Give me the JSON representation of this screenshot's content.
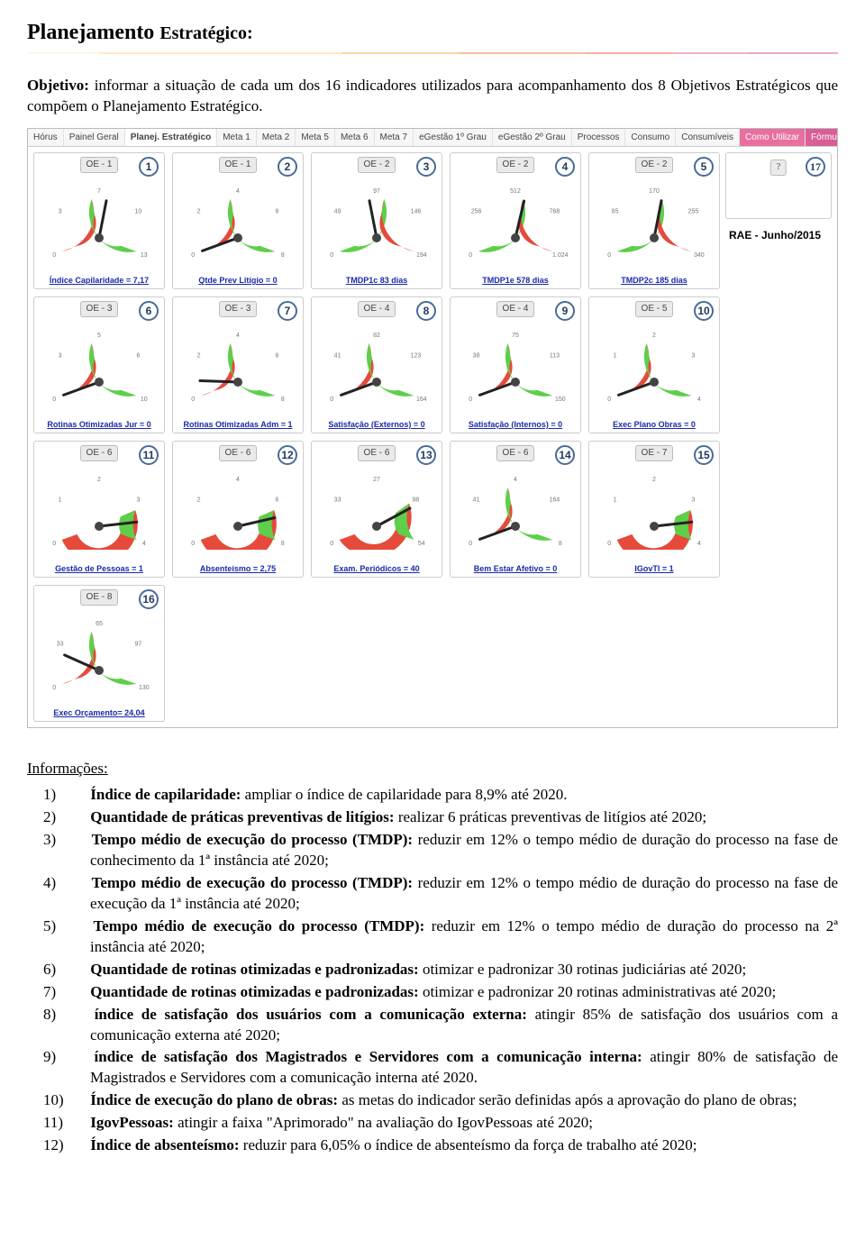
{
  "heading": {
    "main": "Planejamento ",
    "sub": "Estratégico:"
  },
  "objective": {
    "label": "Objetivo:",
    "text": " informar a situação de cada um dos 16 indicadores utilizados para acompanhamento dos 8 Objetivos Estratégicos que compõem o Planejamento Estratégico."
  },
  "dash": {
    "tabs": [
      {
        "label": "Hórus",
        "style": ""
      },
      {
        "label": "Painel Geral",
        "style": ""
      },
      {
        "label": "Planej. Estratégico",
        "style": "bold"
      },
      {
        "label": "Meta 1",
        "style": ""
      },
      {
        "label": "Meta 2",
        "style": ""
      },
      {
        "label": "Meta 5",
        "style": ""
      },
      {
        "label": "Meta 6",
        "style": ""
      },
      {
        "label": "Meta 7",
        "style": ""
      },
      {
        "label": "eGestão 1º Grau",
        "style": ""
      },
      {
        "label": "eGestão 2º Grau",
        "style": ""
      },
      {
        "label": "Processos",
        "style": ""
      },
      {
        "label": "Consumo",
        "style": ""
      },
      {
        "label": "Consumíveis",
        "style": ""
      },
      {
        "label": "Como Utilizar",
        "style": "pink1"
      },
      {
        "label": "Fórmulas",
        "style": "pink2"
      }
    ],
    "rae": "RAE - Junho/2015",
    "extra_badge": "17",
    "extra_oe": "?",
    "gauges": [
      {
        "n": "1",
        "oe": "OE - 1",
        "cap": "Índice Capilaridade = 7,17",
        "lo": "0",
        "hi": "13",
        "mid": "7",
        "t1": "3",
        "t2": "10",
        "pct": 55,
        "red": 45
      },
      {
        "n": "2",
        "oe": "OE - 1",
        "cap": "Qtde Prev Litígio = 0",
        "lo": "0",
        "hi": "8",
        "mid": "4",
        "t1": "2",
        "t2": "6",
        "pct": 0,
        "red": 45
      },
      {
        "n": "3",
        "oe": "OE - 2",
        "cap": "TMDP1c 83 dias",
        "lo": "0",
        "hi": "194",
        "mid": "97",
        "t1": "49",
        "t2": "146",
        "pct": 45,
        "red": 55,
        "invert": true
      },
      {
        "n": "4",
        "oe": "OE - 2",
        "cap": "TMDP1e 578 dias",
        "lo": "0",
        "hi": "1.024",
        "mid": "512",
        "t1": "256",
        "t2": "768",
        "pct": 56,
        "red": 55,
        "invert": true
      },
      {
        "n": "5",
        "oe": "OE - 2",
        "cap": "TMDP2c 185 dias",
        "lo": "0",
        "hi": "340",
        "mid": "170",
        "t1": "85",
        "t2": "255",
        "pct": 55,
        "red": 55,
        "invert": true
      },
      {
        "n": "6",
        "oe": "OE - 3",
        "cap": "Rotinas Otimizadas Jur = 0",
        "lo": "0",
        "hi": "10",
        "mid": "5",
        "t1": "3",
        "t2": "6",
        "pct": 0,
        "red": 45
      },
      {
        "n": "7",
        "oe": "OE - 3",
        "cap": "Rotinas Otimizadas Adm = 1",
        "lo": "0",
        "hi": "8",
        "mid": "4",
        "t1": "2",
        "t2": "6",
        "pct": 10,
        "red": 45
      },
      {
        "n": "8",
        "oe": "OE - 4",
        "cap": "Satisfação (Externos) = 0",
        "lo": "0",
        "hi": "164",
        "mid": "82",
        "t1": "41",
        "t2": "123",
        "pct": 0,
        "red": 45
      },
      {
        "n": "9",
        "oe": "OE - 4",
        "cap": "Satisfação (Internos) = 0",
        "lo": "0",
        "hi": "150",
        "mid": "75",
        "t1": "38",
        "t2": "113",
        "pct": 0,
        "red": 45
      },
      {
        "n": "10",
        "oe": "OE - 5",
        "cap": "Exec Plano Obras = 0",
        "lo": "0",
        "hi": "4",
        "mid": "2",
        "t1": "1",
        "t2": "3",
        "pct": 0,
        "red": 45
      },
      {
        "n": "11",
        "oe": "OE - 6",
        "cap": "Gestão de Pessoas = 1",
        "lo": "0",
        "hi": "4",
        "mid": "2",
        "t1": "1",
        "t2": "3",
        "pct": 88,
        "red": 80
      },
      {
        "n": "12",
        "oe": "OE - 6",
        "cap": "Absenteísmo = 2,75",
        "lo": "0",
        "hi": "8",
        "mid": "4",
        "t1": "2",
        "t2": "6",
        "pct": 85,
        "red": 80
      },
      {
        "n": "13",
        "oe": "OE - 6",
        "cap": "Exam. Periódicos = 40",
        "lo": "0",
        "hi": "54",
        "mid": "27",
        "t1": "33",
        "t2": "98",
        "pct": 78,
        "red": 75
      },
      {
        "n": "14",
        "oe": "OE - 6",
        "cap": "Bem Estar Afetivo = 0",
        "lo": "0",
        "hi": "8",
        "mid": "4",
        "t1": "41",
        "t2": "164",
        "pct": 0,
        "red": 45
      },
      {
        "n": "15",
        "oe": "OE - 7",
        "cap": "IGovTI = 1",
        "lo": "0",
        "hi": "4",
        "mid": "2",
        "t1": "1",
        "t2": "3",
        "pct": 88,
        "red": 80
      },
      {
        "n": "16",
        "oe": "OE - 8",
        "cap": "Exec Orçamento= 24,04",
        "lo": "0",
        "hi": "130",
        "mid": "65",
        "t1": "33",
        "t2": "97",
        "pct": 20,
        "red": 45
      }
    ],
    "colors": {
      "green": "#5fce4a",
      "red": "#e64a3a",
      "needle": "#222",
      "tick": "#555",
      "ticklabel": "#777"
    }
  },
  "info_heading": "Informações:",
  "items": [
    {
      "n": "1)",
      "b": "Índice de capilaridade:",
      "t": " ampliar o índice de capilaridade para 8,9% até 2020."
    },
    {
      "n": "2)",
      "b": "Quantidade de práticas preventivas de litígios:",
      "t": " realizar 6 práticas preventivas de litígios até 2020;"
    },
    {
      "n": "3)",
      "b": "Tempo médio de execução do processo (TMDP):",
      "t": " reduzir em 12% o tempo médio de duração do processo na fase de conhecimento da 1ª instância até 2020;"
    },
    {
      "n": "4)",
      "b": "Tempo médio de execução do processo (TMDP):",
      "t": " reduzir em 12% o tempo médio de duração do processo na fase de execução da 1ª instância até 2020;"
    },
    {
      "n": "5)",
      "b": "Tempo médio de execução do processo (TMDP):",
      "t": " reduzir em 12% o tempo médio de duração do processo na 2ª instância até 2020;"
    },
    {
      "n": "6)",
      "b": "Quantidade de rotinas otimizadas e padronizadas:",
      "t": " otimizar e padronizar 30 rotinas judiciárias até 2020;"
    },
    {
      "n": "7)",
      "b": "Quantidade de rotinas otimizadas e padronizadas:",
      "t": " otimizar e padronizar 20 rotinas administrativas até 2020;"
    },
    {
      "n": "8)",
      "b": "índice de satisfação dos usuários com a comunicação externa:",
      "t": " atingir 85% de satisfação dos usuários com a comunicação externa até 2020;"
    },
    {
      "n": "9)",
      "b": "índice de satisfação dos Magistrados e Servidores com a comunicação interna:",
      "t": " atingir 80% de satisfação de Magistrados e Servidores com a comunicação interna até 2020."
    },
    {
      "n": "10)",
      "b": "Índice de execução do plano de obras:",
      "t": " as metas do indicador serão definidas após a aprovação do plano de obras;"
    },
    {
      "n": "11)",
      "b": "IgovPessoas:",
      "t": " atingir a faixa \"Aprimorado\" na avaliação do IgovPessoas até 2020;"
    },
    {
      "n": "12)",
      "b": "Índice de absenteísmo:",
      "t": " reduzir para 6,05% o índice de absenteísmo da força de trabalho até 2020;"
    }
  ]
}
